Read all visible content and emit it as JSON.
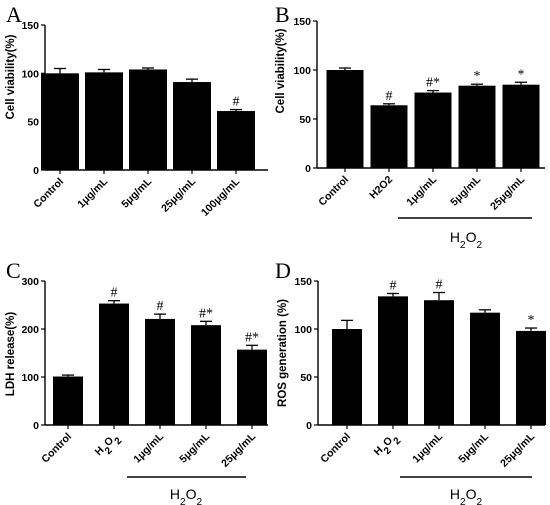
{
  "chart_data": [
    {
      "panel": "A",
      "type": "bar",
      "ylabel": "Cell viability(%)",
      "ylim": [
        0,
        150
      ],
      "yticks": [
        0,
        50,
        100,
        150
      ],
      "categories": [
        "Control",
        "1μg/mL",
        "5μg/mL",
        "25μg/mL",
        "100μg/mL"
      ],
      "values": [
        100,
        101,
        104,
        91,
        61
      ],
      "errors": [
        5,
        3,
        1.5,
        3,
        1.5
      ],
      "marks": [
        "",
        "",
        "",
        "",
        "#"
      ],
      "group_label": ""
    },
    {
      "panel": "B",
      "type": "bar",
      "ylabel": "Cell viability(%)",
      "ylim": [
        0,
        150
      ],
      "yticks": [
        0,
        50,
        100,
        150
      ],
      "categories": [
        "Control",
        "H2O2",
        "1μg/mL",
        "5μg/mL",
        "25μg/mL"
      ],
      "values": [
        100,
        64,
        77,
        84,
        85
      ],
      "errors": [
        2,
        1.5,
        2,
        1.5,
        2.5
      ],
      "marks": [
        "",
        "#",
        "#*",
        "*",
        "*"
      ],
      "group_label": "H2O2"
    },
    {
      "panel": "C",
      "type": "bar",
      "ylabel": "LDH release(%)",
      "ylim": [
        0,
        300
      ],
      "yticks": [
        0,
        100,
        200,
        300
      ],
      "categories": [
        "Control",
        "H2O2",
        "1μg/mL",
        "5μg/mL",
        "25μg/mL"
      ],
      "values": [
        101,
        253,
        221,
        208,
        157
      ],
      "errors": [
        3,
        6,
        10,
        8,
        9
      ],
      "marks": [
        "",
        "#",
        "#",
        "#*",
        "#*"
      ],
      "group_label": "H2O2"
    },
    {
      "panel": "D",
      "type": "bar",
      "ylabel": "ROS generation (%)",
      "ylim": [
        0,
        150
      ],
      "yticks": [
        0,
        50,
        100,
        150
      ],
      "categories": [
        "Control",
        "H2O2",
        "1μg/mL",
        "5μg/mL",
        "25μg/mL"
      ],
      "values": [
        100,
        134,
        130,
        117,
        98
      ],
      "errors": [
        9,
        3,
        8,
        3,
        3
      ],
      "marks": [
        "",
        "#",
        "#",
        "",
        "*"
      ],
      "group_label": "H2O2"
    }
  ],
  "colors": {
    "bar": "#000000",
    "axis": "#000000",
    "background": "#ffffff"
  }
}
